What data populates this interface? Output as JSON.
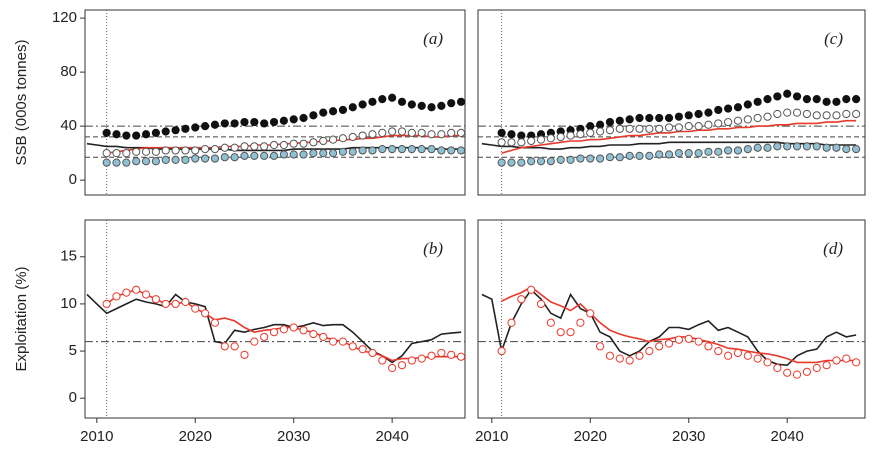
{
  "chart_data": [
    {
      "type": "line",
      "panel_label": "(a)",
      "ylabel": "SSB (000s tonnes)",
      "x": [
        2009,
        2010,
        2011,
        2012,
        2013,
        2014,
        2015,
        2016,
        2017,
        2018,
        2019,
        2020,
        2021,
        2022,
        2023,
        2024,
        2025,
        2026,
        2027,
        2028,
        2029,
        2030,
        2031,
        2032,
        2033,
        2034,
        2035,
        2036,
        2037,
        2038,
        2039,
        2040,
        2041,
        2042,
        2043,
        2044,
        2045,
        2046,
        2047
      ],
      "xlim": [
        2008.8,
        2047.4
      ],
      "ylim": [
        -11,
        126
      ],
      "yticks": [
        0,
        40,
        80,
        120
      ],
      "hlines": [
        {
          "value": 40,
          "style": "dashdot"
        },
        {
          "value": 32,
          "style": "dashed"
        },
        {
          "value": 17,
          "style": "dashed"
        }
      ],
      "vlines": [
        {
          "value": 2011,
          "style": "dotted"
        }
      ],
      "series": [
        {
          "kind": "line",
          "color": "#222222",
          "values": [
            27,
            26,
            25,
            25,
            24,
            24,
            24,
            23,
            23,
            23,
            23,
            23,
            23,
            23,
            23,
            22,
            22,
            22,
            22,
            22,
            22,
            23,
            23,
            23,
            23,
            23,
            23,
            24,
            24,
            24,
            24,
            24,
            24,
            24,
            24,
            23,
            23,
            23,
            23
          ]
        },
        {
          "kind": "line",
          "color": "#e8392b",
          "values": [
            null,
            null,
            20,
            21,
            22,
            23,
            24,
            24,
            24,
            24,
            24,
            24,
            24,
            24,
            25,
            25,
            25,
            26,
            26,
            26,
            27,
            27,
            28,
            28,
            29,
            29,
            30,
            30,
            31,
            31,
            32,
            33,
            33,
            33,
            33,
            32,
            32,
            33,
            33
          ]
        },
        {
          "kind": "points",
          "color": "#111111",
          "fill": "#111111",
          "values": [
            null,
            null,
            35,
            34,
            33,
            33,
            34,
            35,
            36,
            37,
            38,
            39,
            40,
            41,
            42,
            42,
            43,
            43,
            42,
            43,
            44,
            45,
            46,
            48,
            50,
            51,
            52,
            54,
            56,
            58,
            60,
            61,
            58,
            56,
            55,
            54,
            55,
            57,
            58
          ]
        },
        {
          "kind": "points",
          "color": "#555555",
          "fill": "#ffffff",
          "values": [
            null,
            null,
            20,
            20,
            20,
            21,
            21,
            21,
            22,
            22,
            22,
            22,
            23,
            23,
            24,
            24,
            25,
            25,
            25,
            26,
            26,
            27,
            27,
            28,
            29,
            30,
            31,
            32,
            33,
            34,
            35,
            36,
            36,
            35,
            35,
            34,
            34,
            35,
            35
          ]
        },
        {
          "kind": "points",
          "color": "#555555",
          "fill": "#8fc1d4",
          "values": [
            null,
            null,
            13,
            13,
            13,
            14,
            14,
            14,
            15,
            15,
            15,
            16,
            16,
            16,
            17,
            17,
            18,
            18,
            18,
            18,
            19,
            19,
            19,
            20,
            20,
            20,
            21,
            21,
            22,
            22,
            23,
            23,
            23,
            23,
            23,
            23,
            22,
            22,
            22
          ]
        }
      ]
    },
    {
      "type": "line",
      "panel_label": "(c)",
      "x": [
        2009,
        2010,
        2011,
        2012,
        2013,
        2014,
        2015,
        2016,
        2017,
        2018,
        2019,
        2020,
        2021,
        2022,
        2023,
        2024,
        2025,
        2026,
        2027,
        2028,
        2029,
        2030,
        2031,
        2032,
        2033,
        2034,
        2035,
        2036,
        2037,
        2038,
        2039,
        2040,
        2041,
        2042,
        2043,
        2044,
        2045,
        2046,
        2047
      ],
      "xlim": [
        2008.6,
        2047.9
      ],
      "ylim": [
        -11,
        126
      ],
      "hlines": [
        {
          "value": 40,
          "style": "dashdot"
        },
        {
          "value": 32,
          "style": "dashed"
        },
        {
          "value": 17,
          "style": "dashed"
        }
      ],
      "vlines": [
        {
          "value": 2011,
          "style": "dotted"
        }
      ],
      "series": [
        {
          "kind": "line",
          "color": "#222222",
          "values": [
            27,
            26,
            25,
            25,
            24,
            24,
            24,
            23,
            23,
            24,
            24,
            25,
            25,
            26,
            26,
            26,
            27,
            27,
            27,
            28,
            28,
            28,
            28,
            28,
            28,
            28,
            28,
            28,
            28,
            28,
            28,
            27,
            27,
            27,
            27,
            26,
            26,
            26,
            26
          ]
        },
        {
          "kind": "line",
          "color": "#e8392b",
          "values": [
            null,
            null,
            20,
            22,
            24,
            25,
            26,
            27,
            28,
            29,
            29,
            30,
            30,
            31,
            32,
            33,
            33,
            34,
            35,
            35,
            36,
            36,
            37,
            37,
            38,
            38,
            39,
            39,
            40,
            40,
            41,
            41,
            42,
            42,
            42,
            43,
            43,
            44,
            44
          ]
        },
        {
          "kind": "points",
          "color": "#111111",
          "fill": "#111111",
          "values": [
            null,
            null,
            35,
            34,
            33,
            33,
            34,
            35,
            36,
            37,
            38,
            40,
            41,
            43,
            44,
            45,
            46,
            46,
            46,
            46,
            47,
            48,
            49,
            50,
            52,
            53,
            54,
            56,
            58,
            60,
            62,
            64,
            62,
            60,
            60,
            58,
            58,
            60,
            60
          ]
        },
        {
          "kind": "points",
          "color": "#555555",
          "fill": "#ffffff",
          "values": [
            null,
            null,
            28,
            28,
            28,
            29,
            30,
            31,
            32,
            33,
            34,
            35,
            36,
            37,
            38,
            38,
            38,
            38,
            38,
            39,
            39,
            40,
            40,
            41,
            42,
            43,
            44,
            45,
            46,
            47,
            49,
            50,
            50,
            49,
            48,
            48,
            48,
            49,
            49
          ]
        },
        {
          "kind": "points",
          "color": "#555555",
          "fill": "#8fc1d4",
          "values": [
            null,
            null,
            13,
            13,
            13,
            14,
            14,
            14,
            15,
            15,
            16,
            16,
            16,
            17,
            17,
            18,
            18,
            18,
            19,
            19,
            20,
            20,
            20,
            21,
            21,
            22,
            22,
            23,
            24,
            24,
            25,
            25,
            25,
            25,
            25,
            24,
            24,
            23,
            23
          ]
        }
      ]
    },
    {
      "type": "line",
      "panel_label": "(b)",
      "ylabel": "Exploitation (%)",
      "x": [
        2009,
        2010,
        2011,
        2012,
        2013,
        2014,
        2015,
        2016,
        2017,
        2018,
        2019,
        2020,
        2021,
        2022,
        2023,
        2024,
        2025,
        2026,
        2027,
        2028,
        2029,
        2030,
        2031,
        2032,
        2033,
        2034,
        2035,
        2036,
        2037,
        2038,
        2039,
        2040,
        2041,
        2042,
        2043,
        2044,
        2045,
        2046,
        2047
      ],
      "xlim": [
        2008.8,
        2047.4
      ],
      "ylim": [
        -2.1,
        18.9
      ],
      "yticks": [
        0,
        5,
        10,
        15
      ],
      "xticks": [
        2010,
        2020,
        2030,
        2040
      ],
      "hlines": [
        {
          "value": 6,
          "style": "dashdot"
        }
      ],
      "vlines": [
        {
          "value": 2011,
          "style": "dotted"
        }
      ],
      "series": [
        {
          "kind": "line",
          "color": "#222222",
          "values": [
            11,
            10,
            9,
            9.5,
            10,
            10.5,
            10.2,
            10,
            9.7,
            11,
            10.2,
            10,
            9.7,
            6,
            5.8,
            7.2,
            7,
            7.3,
            7.5,
            7.8,
            7.8,
            7.5,
            7.7,
            8,
            7.7,
            7.8,
            7.8,
            7,
            6,
            5,
            4.5,
            3.8,
            4.5,
            5.8,
            6,
            6.2,
            6.8,
            6.9,
            7
          ]
        },
        {
          "kind": "line",
          "color": "#e8392b",
          "values": [
            null,
            null,
            10,
            10.8,
            11.2,
            11.5,
            11,
            10.5,
            10,
            10,
            10.2,
            9.5,
            9,
            8.3,
            8.5,
            8.2,
            7.5,
            7,
            7.2,
            7.3,
            7.5,
            7.5,
            7.2,
            7,
            6.5,
            6.2,
            6,
            5.5,
            5,
            4.8,
            4.5,
            4,
            4.2,
            4.2,
            4.3,
            4.4,
            4.4,
            4.4,
            4.4
          ]
        },
        {
          "kind": "points",
          "color": "#e8392b",
          "fill": "#ffffff",
          "values": [
            null,
            null,
            10,
            10.8,
            11.2,
            11.5,
            11,
            10.5,
            10,
            10,
            10.2,
            9.5,
            9,
            8,
            5.5,
            5.5,
            4.6,
            6,
            6.5,
            7,
            7.3,
            7.5,
            7.2,
            6.8,
            6.5,
            6,
            6,
            5.5,
            5.2,
            4.8,
            4,
            3.2,
            3.5,
            4,
            4.2,
            4.5,
            4.8,
            4.6,
            4.4
          ]
        }
      ]
    },
    {
      "type": "line",
      "panel_label": "(d)",
      "x": [
        2009,
        2010,
        2011,
        2012,
        2013,
        2014,
        2015,
        2016,
        2017,
        2018,
        2019,
        2020,
        2021,
        2022,
        2023,
        2024,
        2025,
        2026,
        2027,
        2028,
        2029,
        2030,
        2031,
        2032,
        2033,
        2034,
        2035,
        2036,
        2037,
        2038,
        2039,
        2040,
        2041,
        2042,
        2043,
        2044,
        2045,
        2046,
        2047
      ],
      "xlim": [
        2008.6,
        2047.9
      ],
      "ylim": [
        -2.1,
        18.9
      ],
      "xticks": [
        2010,
        2020,
        2030,
        2040
      ],
      "hlines": [
        {
          "value": 6,
          "style": "dashdot"
        }
      ],
      "vlines": [
        {
          "value": 2011,
          "style": "dotted"
        }
      ],
      "series": [
        {
          "kind": "line",
          "color": "#222222",
          "values": [
            11,
            10.5,
            5,
            8,
            10,
            11.5,
            10.5,
            9,
            8.5,
            11,
            9.5,
            9,
            7,
            6.5,
            5,
            4.5,
            5,
            6,
            6.5,
            7.5,
            7.5,
            7.3,
            7.8,
            8.2,
            7.2,
            7.5,
            7,
            6.5,
            5,
            4,
            3.6,
            3.5,
            4.5,
            5,
            5.2,
            6.5,
            7,
            6.5,
            6.7
          ]
        },
        {
          "kind": "line",
          "color": "#e8392b",
          "values": [
            null,
            null,
            10.3,
            10.8,
            11.2,
            11.8,
            11,
            10.2,
            9.8,
            9.3,
            10,
            9,
            8,
            7.2,
            6.8,
            6.5,
            6.3,
            6,
            6.2,
            6.3,
            6.5,
            6.5,
            6.2,
            6,
            5.7,
            5.3,
            5.2,
            5,
            4.8,
            4.7,
            4.5,
            4.2,
            3.8,
            3.8,
            3.8,
            4,
            4,
            4,
            4
          ]
        },
        {
          "kind": "points",
          "color": "#e8392b",
          "fill": "#ffffff",
          "values": [
            null,
            null,
            5,
            8,
            10.5,
            11.5,
            10,
            8,
            7,
            7,
            8,
            9,
            5.5,
            4.5,
            4.2,
            4,
            4.5,
            5,
            5.5,
            5.8,
            6.2,
            6.3,
            6,
            5.5,
            5,
            4.5,
            4.8,
            4.5,
            4.2,
            3.8,
            3.2,
            2.7,
            2.5,
            2.8,
            3.2,
            3.5,
            4,
            4.2,
            3.8
          ]
        }
      ]
    }
  ]
}
